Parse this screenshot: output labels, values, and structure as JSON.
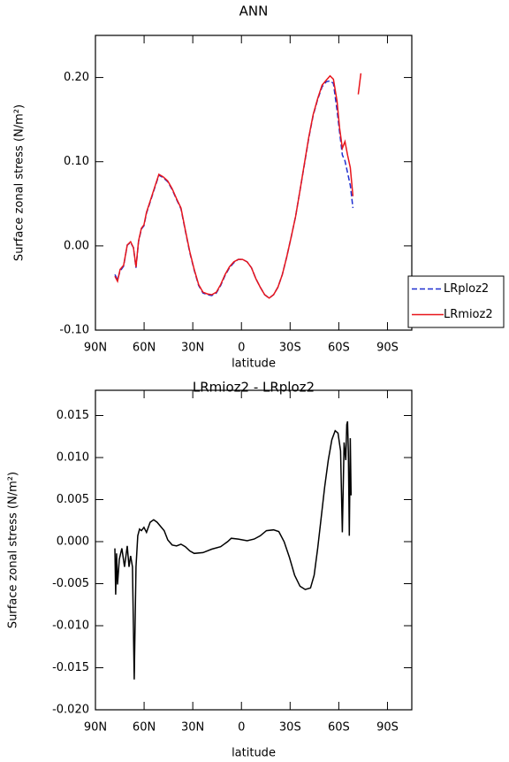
{
  "chart_data": [
    {
      "type": "line",
      "title": "ANN",
      "xlabel": "latitude",
      "ylabel": "Surface zonal stress (N/m²)",
      "x": [
        78.0,
        76.4,
        74.8,
        72.6,
        70.4,
        68.3,
        66.6,
        65.0,
        63.4,
        61.7,
        60.1,
        58.5,
        56.3,
        53.6,
        50.9,
        48.2,
        45.4,
        42.7,
        40.0,
        37.3,
        34.6,
        31.8,
        29.1,
        26.4,
        23.7,
        21.0,
        18.3,
        15.5,
        12.8,
        10.1,
        7.4,
        4.7,
        2.0,
        -0.7,
        -3.5,
        -6.2,
        -8.9,
        -11.6,
        -14.3,
        -17.1,
        -19.8,
        -22.5,
        -25.2,
        -27.9,
        -30.7,
        -33.4,
        -36.1,
        -38.8,
        -41.5,
        -44.2,
        -47.0,
        -49.7,
        -52.4,
        -54.6,
        -56.7,
        -58.9,
        -60.5,
        -62.2,
        -63.8,
        -65.4,
        -67.1,
        -68.7,
        -70.4,
        -72.0,
        -73.6
      ],
      "series": [
        {
          "name": "LRploz2",
          "color": "#1f2fd0",
          "linestyle": "dashed",
          "values": [
            -0.034,
            -0.04,
            -0.03,
            -0.024,
            0.001,
            0.004,
            -0.002,
            -0.026,
            0.005,
            0.02,
            0.024,
            0.039,
            0.052,
            0.068,
            0.084,
            0.081,
            0.076,
            0.067,
            0.055,
            0.044,
            0.018,
            -0.008,
            -0.029,
            -0.047,
            -0.056,
            -0.058,
            -0.059,
            -0.056,
            -0.047,
            -0.035,
            -0.026,
            -0.02,
            -0.016,
            -0.016,
            -0.019,
            -0.026,
            -0.039,
            -0.049,
            -0.058,
            -0.062,
            -0.058,
            -0.049,
            -0.034,
            -0.013,
            0.011,
            0.035,
            0.066,
            0.097,
            0.128,
            0.155,
            0.174,
            0.189,
            0.195,
            0.196,
            0.193,
            0.161,
            0.135,
            0.108,
            0.101,
            0.087,
            0.072,
            0.045,
            null,
            null,
            null
          ]
        },
        {
          "name": "LRmioz2",
          "color": "#e8151b",
          "linestyle": "solid",
          "values": [
            -0.036,
            -0.042,
            -0.028,
            -0.023,
            0.001,
            0.005,
            -0.002,
            -0.025,
            0.006,
            0.021,
            0.025,
            0.04,
            0.053,
            0.069,
            0.085,
            0.082,
            0.077,
            0.068,
            0.056,
            0.045,
            0.019,
            -0.007,
            -0.028,
            -0.046,
            -0.055,
            -0.057,
            -0.058,
            -0.055,
            -0.046,
            -0.034,
            -0.025,
            -0.019,
            -0.016,
            -0.016,
            -0.019,
            -0.026,
            -0.039,
            -0.049,
            -0.058,
            -0.062,
            -0.058,
            -0.049,
            -0.034,
            -0.013,
            0.011,
            0.035,
            0.066,
            0.098,
            0.129,
            0.156,
            0.175,
            0.191,
            0.197,
            0.202,
            0.198,
            0.172,
            0.14,
            0.116,
            0.124,
            0.108,
            0.093,
            0.059,
            null,
            0.18,
            0.205
          ]
        }
      ],
      "xlim": [
        90,
        -105
      ],
      "ylim": [
        -0.1,
        0.25
      ],
      "xticks": [
        {
          "value": 90,
          "label": "90N"
        },
        {
          "value": 60,
          "label": "60N"
        },
        {
          "value": 30,
          "label": "30N"
        },
        0,
        {
          "value": -30,
          "label": "30S"
        },
        {
          "value": -60,
          "label": "60S"
        },
        {
          "value": -90,
          "label": "90S"
        }
      ],
      "yticks": [
        {
          "value": -0.1,
          "label": "-0.10"
        },
        {
          "value": 0,
          "label": "0.00"
        },
        {
          "value": 0.1,
          "label": "0.10"
        },
        {
          "value": 0.2,
          "label": "0.20"
        }
      ],
      "legend": "right"
    },
    {
      "type": "line",
      "title": "LRmioz2 - LRploz2",
      "xlabel": "latitude",
      "ylabel": "Surface zonal stress (N/m²)",
      "x": [
        78.0,
        77.5,
        77.0,
        76.4,
        75.3,
        73.7,
        72.1,
        70.4,
        69.3,
        68.3,
        67.2,
        66.1,
        65.0,
        63.9,
        62.8,
        61.7,
        60.1,
        58.5,
        56.3,
        54.1,
        52.0,
        49.8,
        47.6,
        45.4,
        42.7,
        40.0,
        37.3,
        34.6,
        31.8,
        29.1,
        23.7,
        18.3,
        12.8,
        8.5,
        6.3,
        2.0,
        -3.5,
        -7.8,
        -11.6,
        -15.4,
        -19.8,
        -23.0,
        -26.3,
        -29.6,
        -32.8,
        -36.1,
        -39.3,
        -42.6,
        -44.8,
        -47.0,
        -49.1,
        -51.3,
        -53.5,
        -55.7,
        -57.8,
        -59.5,
        -61.1,
        -62.2,
        -63.3,
        -64.3,
        -64.9,
        -65.4,
        -65.9,
        -66.5,
        -67.1,
        -67.6
      ],
      "series": [
        {
          "name": "LRmioz2 - LRploz2",
          "color": "#000000",
          "linestyle": "solid",
          "values": [
            -0.0008,
            -0.0063,
            -0.0014,
            -0.0051,
            -0.0021,
            -0.0008,
            -0.003,
            -0.0005,
            -0.003,
            -0.0017,
            -0.003,
            -0.0164,
            -0.003,
            0.0007,
            0.0015,
            0.0013,
            0.0017,
            0.0011,
            0.0023,
            0.0026,
            0.0023,
            0.0018,
            0.0013,
            0.0002,
            -0.0004,
            -0.0005,
            -0.0003,
            -0.0006,
            -0.0011,
            -0.0014,
            -0.0013,
            -0.0009,
            -0.0006,
            0.0,
            0.0004,
            0.0003,
            0.0001,
            0.0003,
            0.0007,
            0.0013,
            0.0014,
            0.0012,
            0.0,
            -0.0019,
            -0.004,
            -0.0053,
            -0.0057,
            -0.0055,
            -0.004,
            -0.0008,
            0.0028,
            0.0065,
            0.0097,
            0.0121,
            0.0132,
            0.0129,
            0.0108,
            0.0011,
            0.0118,
            0.0097,
            0.0139,
            0.0143,
            0.0108,
            0.0007,
            0.0123,
            0.0055
          ]
        }
      ],
      "xlim": [
        90,
        -105
      ],
      "ylim": [
        -0.02,
        0.018
      ],
      "xticks": [
        {
          "value": 90,
          "label": "90N"
        },
        {
          "value": 60,
          "label": "60N"
        },
        {
          "value": 30,
          "label": "30N"
        },
        0,
        {
          "value": -30,
          "label": "30S"
        },
        {
          "value": -60,
          "label": "60S"
        },
        {
          "value": -90,
          "label": "90S"
        }
      ],
      "yticks": [
        {
          "value": -0.02,
          "label": "-0.020"
        },
        -0.015,
        {
          "value": -0.01,
          "label": "-0.010"
        },
        -0.005,
        {
          "value": 0,
          "label": "0.000"
        },
        0.005,
        {
          "value": 0.01,
          "label": "0.010"
        },
        0.015
      ]
    }
  ]
}
